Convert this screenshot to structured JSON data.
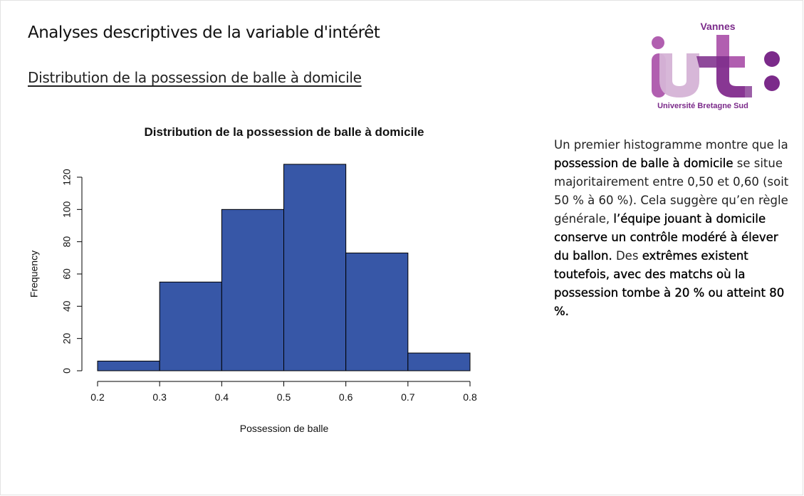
{
  "slide": {
    "title": "Analyses descriptives de la variable d'intérêt",
    "subtitle": "Distribution de la possession de balle à domicile"
  },
  "logo": {
    "top_text": "Vannes",
    "bottom_text": "Université Bretagne Sud",
    "colors": {
      "dark": "#7b2a8a",
      "medium": "#b15fb0",
      "light": "#d5b3d6"
    }
  },
  "paragraph": {
    "segments": [
      {
        "text": "Un premier histogramme montre que la ",
        "bold": false
      },
      {
        "text": "possession de balle à domicile",
        "bold": true
      },
      {
        "text": " se situe majoritairement entre 0,50 et 0,60 (soit 50 % à 60 %). Cela suggère qu’en règle générale, ",
        "bold": false
      },
      {
        "text": "l’équipe jouant à domicile conserve un contrôle modéré à élever du ballon.",
        "bold": true
      },
      {
        "text": " Des ",
        "bold": false
      },
      {
        "text": "extrêmes existent toutefois, avec des matchs où la possession tombe à 20 % ou atteint 80 %.",
        "bold": true
      }
    ]
  },
  "chart_data": {
    "type": "bar",
    "subtype": "histogram",
    "title": "Distribution de la possession de balle à domicile",
    "xlabel": "Possession de balle",
    "ylabel": "Frequency",
    "bins": [
      {
        "start": 0.2,
        "end": 0.3,
        "count": 6
      },
      {
        "start": 0.3,
        "end": 0.4,
        "count": 55
      },
      {
        "start": 0.4,
        "end": 0.5,
        "count": 100
      },
      {
        "start": 0.5,
        "end": 0.6,
        "count": 128
      },
      {
        "start": 0.6,
        "end": 0.7,
        "count": 73
      },
      {
        "start": 0.7,
        "end": 0.8,
        "count": 11
      }
    ],
    "xticks": [
      "0.2",
      "0.3",
      "0.4",
      "0.5",
      "0.6",
      "0.7",
      "0.8"
    ],
    "yticks": [
      "0",
      "20",
      "40",
      "60",
      "80",
      "100",
      "120"
    ],
    "xlim": [
      0.2,
      0.8
    ],
    "ylim": [
      0,
      120
    ],
    "bar_color": "#3757a7",
    "grid": false,
    "legend": "none"
  }
}
